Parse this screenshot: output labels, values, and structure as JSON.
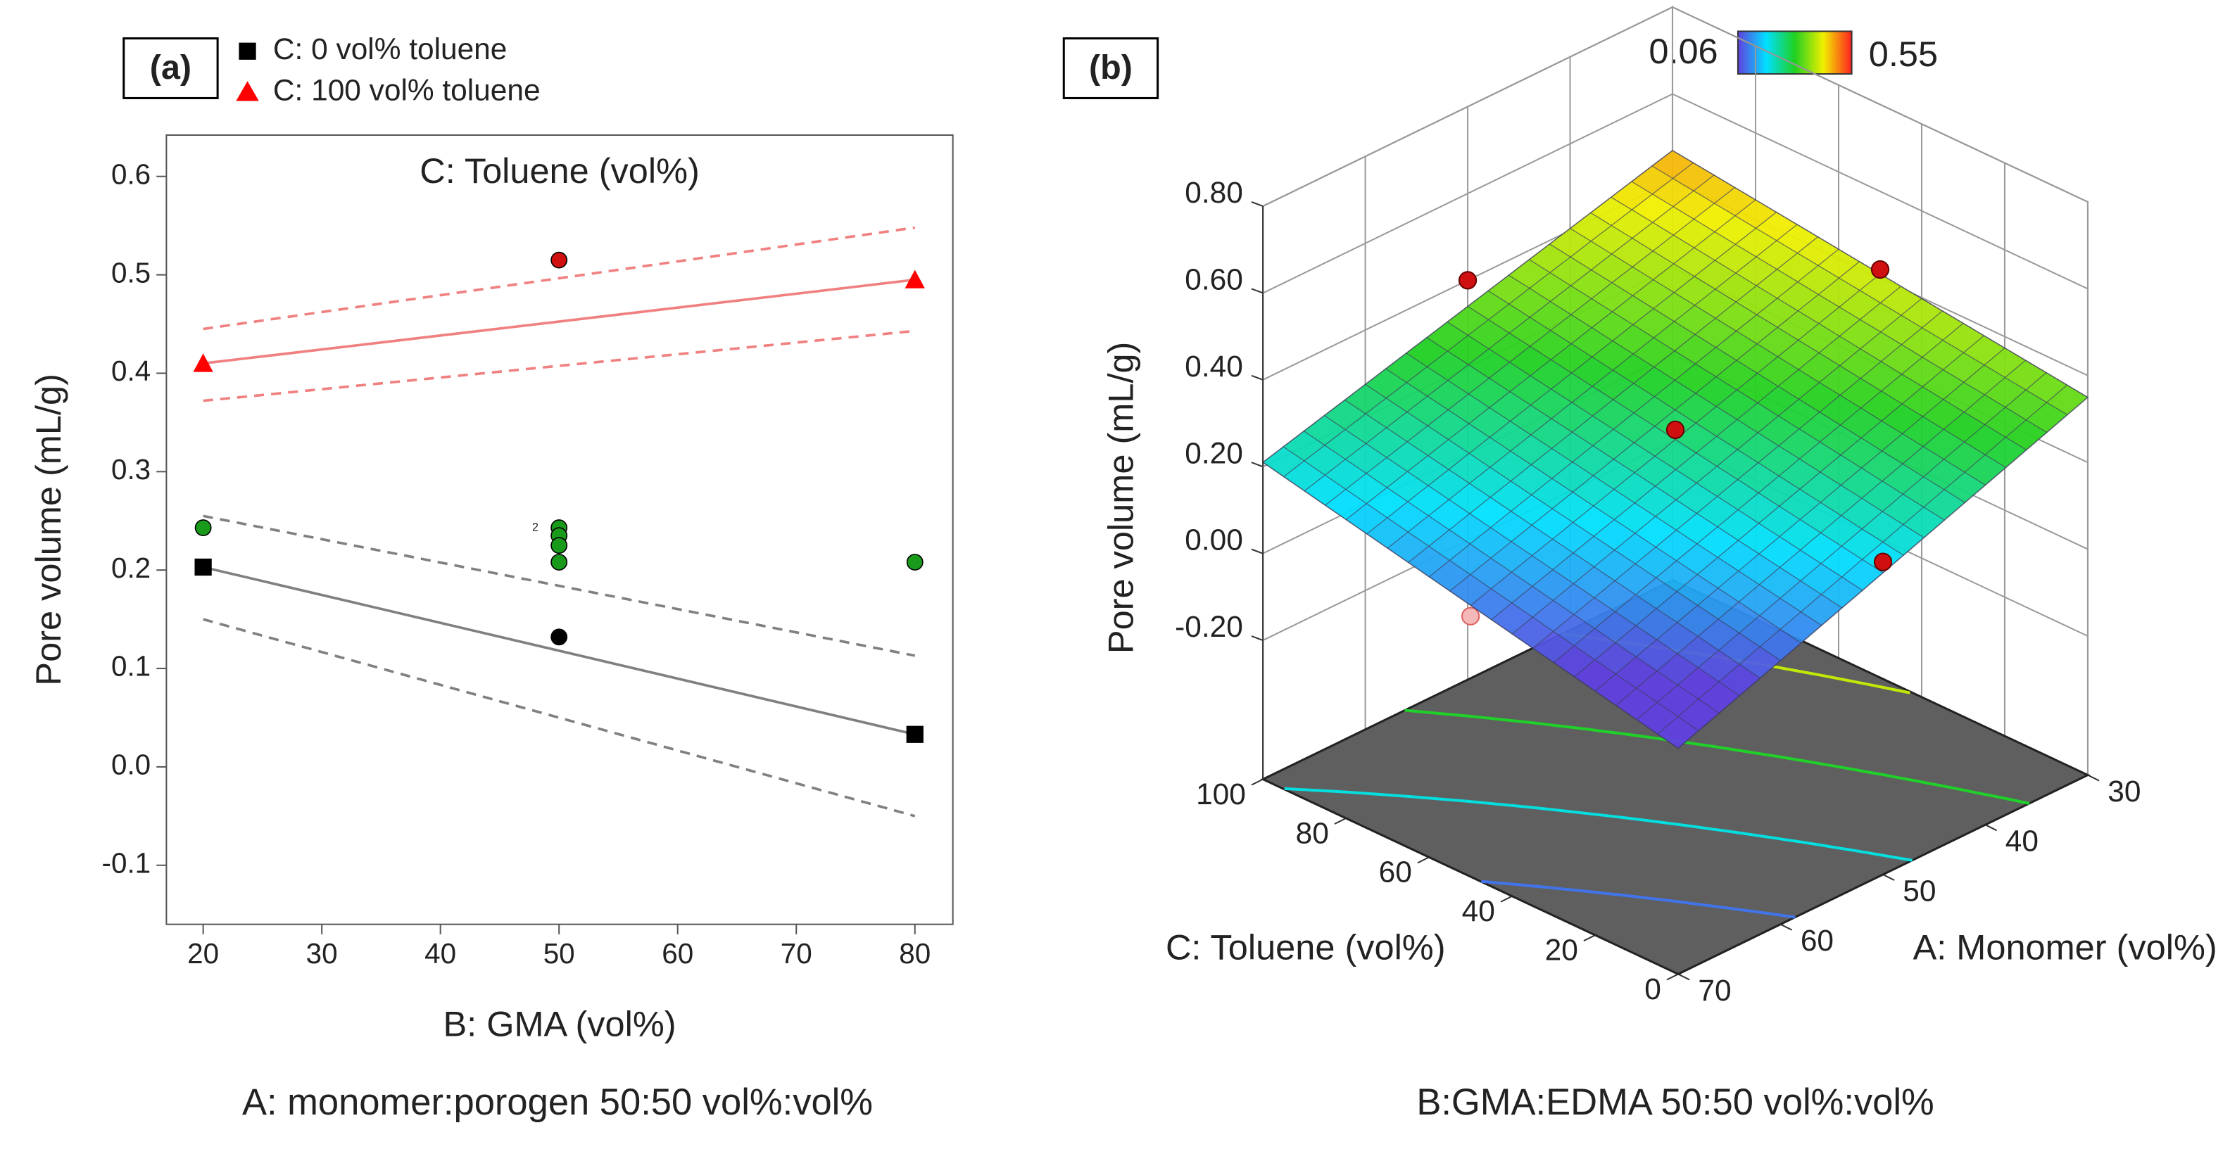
{
  "chart_data": [
    {
      "type": "scatter",
      "panel_label": "(a)",
      "title": "C: Toluene (vol%)",
      "xlabel": "B: GMA (vol%)",
      "ylabel": "Pore volume (mL/g)",
      "caption": "A: monomer:porogen 50:50 vol%:vol%",
      "xlim": [
        16.9,
        83.2
      ],
      "xticks": [
        20,
        30,
        40,
        50,
        60,
        70,
        80
      ],
      "ylim": [
        -0.16,
        0.642
      ],
      "yticks": [
        -0.1,
        {
          "value": 0,
          "label": "0.0"
        },
        0.1,
        0.2,
        0.3,
        0.4,
        0.5,
        0.6
      ],
      "series": [
        {
          "name": "C: 0 vol% toluene",
          "color": "#000000",
          "marker": "square",
          "x": [
            20,
            80
          ],
          "values": [
            0.203,
            0.033
          ],
          "fit": [
            0.203,
            0.033
          ],
          "upper": [
            0.255,
            0.113
          ],
          "lower": [
            0.15,
            -0.05
          ],
          "fit_color": "#808080"
        },
        {
          "name": "C: 100 vol% toluene",
          "color": "#ff0000",
          "marker": "triangle",
          "x": [
            20,
            80
          ],
          "values": [
            0.41,
            0.495
          ],
          "fit": [
            0.41,
            0.495
          ],
          "upper": [
            0.445,
            0.548
          ],
          "lower": [
            0.372,
            0.443
          ],
          "fit_color": "#f08080"
        }
      ],
      "points": {
        "x": [
          20,
          50,
          50,
          50,
          50,
          80,
          50,
          50
        ],
        "values": [
          0.243,
          0.243,
          0.235,
          0.225,
          0.208,
          0.208,
          0.515,
          0.132
        ],
        "colors": [
          "#1a9a1a",
          "#1a9a1a",
          "#1a9a1a",
          "#1a9a1a",
          "#1a9a1a",
          "#1a9a1a",
          "#d01010",
          "#000000"
        ]
      },
      "annotations": [
        {
          "text": "2",
          "x": 48,
          "y": 0.243
        }
      ]
    },
    {
      "type": "surface",
      "panel_label": "(b)",
      "caption": "B:GMA:EDMA 50:50 vol%:vol%",
      "xlabel": "A: Monomer (vol%)",
      "ylabel": "C: Toluene (vol%)",
      "zlabel": "Pore volume (mL/g)",
      "xlim": [
        30,
        70
      ],
      "xticks": [
        30,
        40,
        50,
        60,
        70
      ],
      "ylim": [
        0,
        100
      ],
      "yticks": [
        0,
        20,
        40,
        60,
        80,
        100
      ],
      "zlim": [
        -0.52,
        0.8
      ],
      "zticks": [
        {
          "value": -0.2,
          "label": "-0.20"
        },
        {
          "value": 0,
          "label": "0.00"
        },
        {
          "value": 0.2,
          "label": "0.20"
        },
        {
          "value": 0.4,
          "label": "0.40"
        },
        {
          "value": 0.6,
          "label": "0.60"
        },
        {
          "value": 0.8,
          "label": "0.80"
        }
      ],
      "color_range": [
        0.06,
        0.55
      ],
      "color_range_colors": [
        "#1f5fd0",
        "#ff2020"
      ],
      "surface": {
        "x": [
          30,
          70
        ],
        "y": [
          0,
          100
        ],
        "z": [
          [
            0.35,
            0.47
          ],
          [
            0.0,
            0.21
          ]
        ]
      },
      "contour_levels": [
        0.1,
        0.2,
        0.3,
        0.4,
        0.5
      ],
      "points": {
        "x": [
          50,
          30,
          50,
          50,
          70
        ],
        "y": [
          50,
          50,
          100,
          0,
          50
        ],
        "z": [
          0.28,
          0.42,
          0.4,
          0.2,
          0.08
        ],
        "color": "#d01010"
      }
    }
  ]
}
